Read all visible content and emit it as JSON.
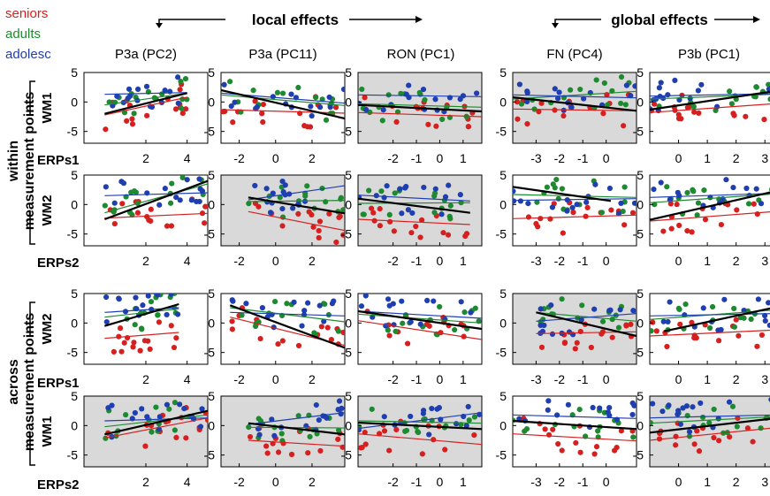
{
  "legend": {
    "groups": [
      {
        "name": "seniors",
        "color": "#d62020"
      },
      {
        "name": "adults",
        "color": "#1e8a30"
      },
      {
        "name": "adolesc",
        "color": "#1f3fb0"
      }
    ]
  },
  "headers": {
    "local": "local effects",
    "global": "global effects"
  },
  "columns": [
    "P3a (PC2)",
    "P3a (PC11)",
    "RON (PC1)",
    "FN (PC4)",
    "P3b (PC1)"
  ],
  "row_groups": [
    {
      "line1": "within",
      "line2": "measurement points"
    },
    {
      "line1": "across",
      "line2": "measurement points"
    }
  ],
  "rows": [
    {
      "wm": "WM1",
      "erp": "ERPs1"
    },
    {
      "wm": "WM2",
      "erp": "ERPs2"
    },
    {
      "wm": "WM2",
      "erp": "ERPs1"
    },
    {
      "wm": "WM1",
      "erp": "ERPs2"
    }
  ],
  "colors": {
    "seniors": "#d62020",
    "adults": "#1e8a30",
    "adolesc": "#1f3fb0",
    "overall": "#000000",
    "shaded_bg": "#d9d9d9"
  },
  "chart_data": {
    "type": "scatter",
    "title": "",
    "ylim": [
      -7,
      5
    ],
    "y_ticks": [
      "5",
      "0",
      "-5"
    ],
    "x_axes": [
      {
        "range": [
          -1,
          5
        ],
        "ticks": [
          "2",
          "4"
        ]
      },
      {
        "range": [
          -3,
          3.8
        ],
        "ticks": [
          "-2",
          "0",
          "2"
        ]
      },
      {
        "range": [
          -3.5,
          1.8
        ],
        "ticks": [
          "-2",
          "-1",
          "0",
          "1"
        ]
      },
      {
        "range": [
          -4,
          1.3
        ],
        "ticks": [
          "-3",
          "-2",
          "-1",
          "0"
        ]
      },
      {
        "range": [
          -1,
          3.3
        ],
        "ticks": [
          "0",
          "1",
          "2",
          "3"
        ]
      }
    ],
    "shaded_panels": [
      [
        0,
        2
      ],
      [
        0,
        3
      ],
      [
        1,
        1
      ],
      [
        1,
        2
      ],
      [
        3,
        0
      ],
      [
        3,
        1
      ],
      [
        3,
        2
      ],
      [
        3,
        4
      ],
      [
        2,
        3
      ]
    ],
    "panels": [
      [
        {
          "overall": [
            [
              0,
              -2
            ],
            [
              4,
              1.5
            ]
          ],
          "seniors": [
            [
              0,
              -2.2
            ],
            [
              4,
              0.8
            ]
          ],
          "adults": [
            [
              0,
              -0.5
            ],
            [
              4,
              1.5
            ]
          ],
          "adolesc": [
            [
              0,
              1.3
            ],
            [
              4,
              1.6
            ]
          ]
        },
        {
          "overall": [
            [
              -3,
              2
            ],
            [
              3.8,
              -2.8
            ]
          ],
          "seniors": [
            [
              -3,
              -1.3
            ],
            [
              3.8,
              -1.9
            ]
          ],
          "adults": [
            [
              -3,
              1.2
            ],
            [
              3.8,
              -0.6
            ]
          ],
          "adolesc": [
            [
              -3,
              1.5
            ],
            [
              3.8,
              -0.2
            ]
          ]
        },
        {
          "overall": [
            [
              -3.5,
              -0.5
            ],
            [
              1.8,
              -1.6
            ]
          ],
          "seniors": [
            [
              -3.5,
              -1.8
            ],
            [
              1.8,
              -2.5
            ]
          ],
          "adults": [
            [
              -3.5,
              -0.3
            ],
            [
              1.8,
              -0.9
            ]
          ],
          "adolesc": [
            [
              -3.5,
              1.2
            ],
            [
              1.8,
              0.9
            ]
          ]
        },
        {
          "overall": [
            [
              -4,
              0.8
            ],
            [
              1.3,
              -1.5
            ]
          ],
          "seniors": [
            [
              -4,
              -1.2
            ],
            [
              1.3,
              -1.5
            ]
          ],
          "adults": [
            [
              -4,
              0.5
            ],
            [
              1.3,
              1.8
            ]
          ],
          "adolesc": [
            [
              -4,
              1.2
            ],
            [
              1.3,
              0.7
            ]
          ]
        },
        {
          "overall": [
            [
              -1,
              -1.3
            ],
            [
              3.3,
              1.8
            ]
          ],
          "seniors": [
            [
              -1,
              -1.8
            ],
            [
              3.3,
              -0.3
            ]
          ],
          "adults": [
            [
              -1,
              0.5
            ],
            [
              3.3,
              1.3
            ]
          ],
          "adolesc": [
            [
              -1,
              1.0
            ],
            [
              3.3,
              1.4
            ]
          ]
        }
      ],
      [
        {
          "overall": [
            [
              0,
              -2.5
            ],
            [
              5,
              4
            ]
          ],
          "seniors": [
            [
              0,
              -2.3
            ],
            [
              5,
              -1.5
            ]
          ],
          "adults": [
            [
              0,
              -1.4
            ],
            [
              5,
              3.5
            ]
          ],
          "adolesc": [
            [
              0,
              1.5
            ],
            [
              5,
              2.0
            ]
          ]
        },
        {
          "overall": [
            [
              -1.5,
              1.2
            ],
            [
              3.8,
              -1.5
            ]
          ],
          "seniors": [
            [
              -1.5,
              -1.2
            ],
            [
              3.8,
              -4.4
            ]
          ],
          "adults": [
            [
              -1.5,
              0.5
            ],
            [
              3.8,
              0.7
            ]
          ],
          "adolesc": [
            [
              -1.5,
              0.8
            ],
            [
              3.8,
              3.2
            ]
          ]
        },
        {
          "overall": [
            [
              -3.5,
              1
            ],
            [
              1.3,
              -1.4
            ]
          ],
          "seniors": [
            [
              -3.5,
              -2.5
            ],
            [
              1.3,
              -3.4
            ]
          ],
          "adults": [
            [
              -3.5,
              0.2
            ],
            [
              1.3,
              0.3
            ]
          ],
          "adolesc": [
            [
              -3.5,
              1.6
            ],
            [
              1.3,
              0.6
            ]
          ]
        },
        {
          "overall": [
            [
              -4,
              3
            ],
            [
              0.2,
              0.6
            ]
          ],
          "seniors": [
            [
              -4,
              -2.4
            ],
            [
              1.3,
              -1.8
            ]
          ],
          "adults": [
            [
              -4,
              1.7
            ],
            [
              1.3,
              1.2
            ]
          ],
          "adolesc": [
            [
              -4,
              0.7
            ],
            [
              1.3,
              1.0
            ]
          ]
        },
        {
          "overall": [
            [
              -1,
              -2.6
            ],
            [
              3.3,
              2.2
            ]
          ],
          "seniors": [
            [
              -1,
              -2.8
            ],
            [
              3.3,
              -1.2
            ]
          ],
          "adults": [
            [
              -1,
              0.3
            ],
            [
              3.3,
              1.8
            ]
          ],
          "adolesc": [
            [
              -1,
              1.2
            ],
            [
              3.3,
              1.9
            ]
          ]
        }
      ],
      [
        {
          "overall": [
            [
              0,
              -0.5
            ],
            [
              3.6,
              3.2
            ]
          ],
          "seniors": [
            [
              0,
              -2.6
            ],
            [
              3.6,
              -1.6
            ]
          ],
          "adults": [
            [
              0,
              1
            ],
            [
              3.6,
              2.4
            ]
          ],
          "adolesc": [
            [
              0,
              1.8
            ],
            [
              3.6,
              2.6
            ]
          ]
        },
        {
          "overall": [
            [
              -2.5,
              3
            ],
            [
              3.8,
              -4.2
            ]
          ],
          "seniors": [
            [
              -2.5,
              1
            ],
            [
              3.8,
              -3.8
            ]
          ],
          "adults": [
            [
              -2.5,
              2.6
            ],
            [
              3.8,
              0.2
            ]
          ],
          "adolesc": [
            [
              -2.5,
              1.8
            ],
            [
              3.8,
              1.2
            ]
          ]
        },
        {
          "overall": [
            [
              -3.5,
              2
            ],
            [
              1.8,
              -1
            ]
          ],
          "seniors": [
            [
              -3.5,
              0.4
            ],
            [
              1.8,
              -2.8
            ]
          ],
          "adults": [
            [
              -3.5,
              1.5
            ],
            [
              1.8,
              0
            ]
          ],
          "adolesc": [
            [
              -3.5,
              2
            ],
            [
              1.8,
              0.8
            ]
          ]
        },
        {
          "overall": [
            [
              -3,
              1.8
            ],
            [
              1.3,
              -2.2
            ]
          ],
          "seniors": [
            [
              -3,
              -1.8
            ],
            [
              1.3,
              -1.5
            ]
          ],
          "adults": [
            [
              -3,
              1.8
            ],
            [
              1.3,
              0.3
            ]
          ],
          "adolesc": [
            [
              -3,
              0.3
            ],
            [
              1.3,
              1.6
            ]
          ]
        },
        {
          "overall": [
            [
              -0.5,
              -1.4
            ],
            [
              3.3,
              2.6
            ]
          ],
          "seniors": [
            [
              -1,
              -2.2
            ],
            [
              3.3,
              -1.2
            ]
          ],
          "adults": [
            [
              -1,
              0.6
            ],
            [
              3.3,
              2.2
            ]
          ],
          "adolesc": [
            [
              -1,
              1.2
            ],
            [
              3.3,
              1.6
            ]
          ]
        }
      ],
      [
        {
          "overall": [
            [
              0,
              -1.5
            ],
            [
              5,
              2.5
            ]
          ],
          "seniors": [
            [
              0,
              -2.1
            ],
            [
              5,
              1.3
            ]
          ],
          "adults": [
            [
              0,
              -0.2
            ],
            [
              5,
              1.8
            ]
          ],
          "adolesc": [
            [
              0,
              0.8
            ],
            [
              5,
              1.3
            ]
          ]
        },
        {
          "overall": [
            [
              -1.5,
              0.4
            ],
            [
              3.8,
              -1.5
            ]
          ],
          "seniors": [
            [
              -1.5,
              -2.5
            ],
            [
              3.8,
              -3.5
            ]
          ],
          "adults": [
            [
              -1.5,
              -0.3
            ],
            [
              3.8,
              -0.4
            ]
          ],
          "adolesc": [
            [
              -1.5,
              0.2
            ],
            [
              3.8,
              2.2
            ]
          ]
        },
        {
          "overall": [
            [
              -3.5,
              0.5
            ],
            [
              1.8,
              -0.6
            ]
          ],
          "seniors": [
            [
              -3.5,
              -1.4
            ],
            [
              1.8,
              -3.2
            ]
          ],
          "adults": [
            [
              -3.5,
              0.8
            ],
            [
              1.8,
              0.4
            ]
          ],
          "adolesc": [
            [
              -3.5,
              -0.5
            ],
            [
              1.8,
              2.2
            ]
          ]
        },
        {
          "overall": [
            [
              -4,
              0.8
            ],
            [
              1.3,
              -0.6
            ]
          ],
          "seniors": [
            [
              -4,
              -1.4
            ],
            [
              1.3,
              -2.6
            ]
          ],
          "adults": [
            [
              -4,
              0.7
            ],
            [
              1.3,
              -0.5
            ]
          ],
          "adolesc": [
            [
              -4,
              1.8
            ],
            [
              1.3,
              1.2
            ]
          ]
        },
        {
          "overall": [
            [
              -1,
              -1.2
            ],
            [
              3.3,
              1.2
            ]
          ],
          "seniors": [
            [
              -1,
              -2.5
            ],
            [
              3.3,
              -0.4
            ]
          ],
          "adults": [
            [
              -1,
              0.4
            ],
            [
              3.3,
              1.5
            ]
          ],
          "adolesc": [
            [
              -1,
              1.3
            ],
            [
              3.3,
              1.8
            ]
          ]
        }
      ]
    ],
    "points_per_group": 16
  }
}
